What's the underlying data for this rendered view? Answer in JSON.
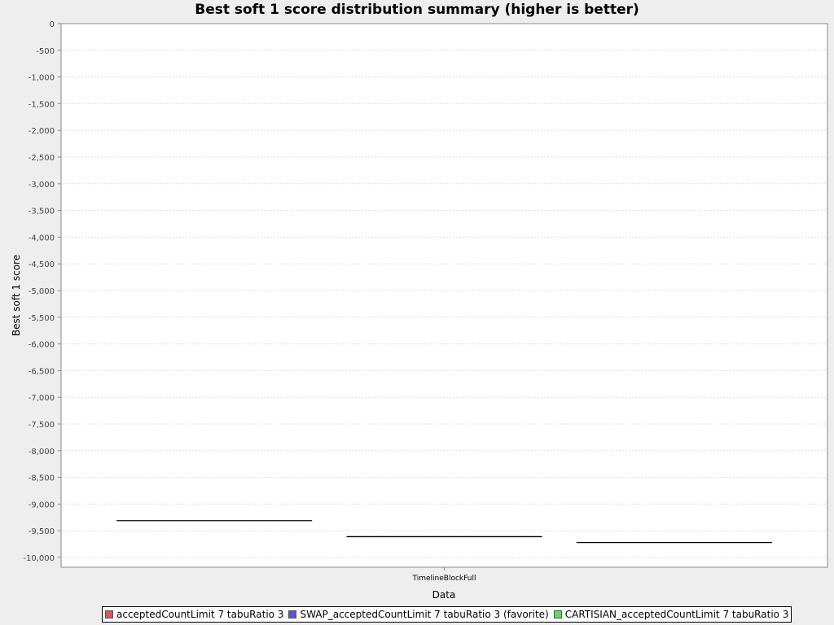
{
  "chart_data": {
    "type": "box",
    "title": "Best soft 1 score distribution summary (higher is better)",
    "xlabel": "Data",
    "ylabel": "Best soft 1 score",
    "categories": [
      "TimelineBlockFull"
    ],
    "ylim": [
      -10200,
      0
    ],
    "y_ticks": [
      0,
      -500,
      -1000,
      -1500,
      -2000,
      -2500,
      -3000,
      -3500,
      -4000,
      -4500,
      -5000,
      -5500,
      -6000,
      -6500,
      -7000,
      -7500,
      -8000,
      -8500,
      -9000,
      -9500,
      -10000
    ],
    "y_tick_labels": [
      "0",
      "-500",
      "-1,000",
      "-1,500",
      "-2,000",
      "-2,500",
      "-3,000",
      "-3,500",
      "-4,000",
      "-4,500",
      "-5,000",
      "-5,500",
      "-6,000",
      "-6,500",
      "-7,000",
      "-7,500",
      "-8,000",
      "-8,500",
      "-9,000",
      "-9,500",
      "-10,000"
    ],
    "grid": true,
    "legend_position": "bottom",
    "series": [
      {
        "name": "acceptedCountLimit 7 tabuRatio 3",
        "color": "#e05555",
        "values": [
          -9310
        ]
      },
      {
        "name": "SWAP_acceptedCountLimit 7 tabuRatio 3 (favorite)",
        "color": "#5555e0",
        "values": [
          -9610
        ]
      },
      {
        "name": "CARTISIAN_acceptedCountLimit 7 tabuRatio 3",
        "color": "#55e055",
        "values": [
          -9720
        ]
      }
    ]
  }
}
